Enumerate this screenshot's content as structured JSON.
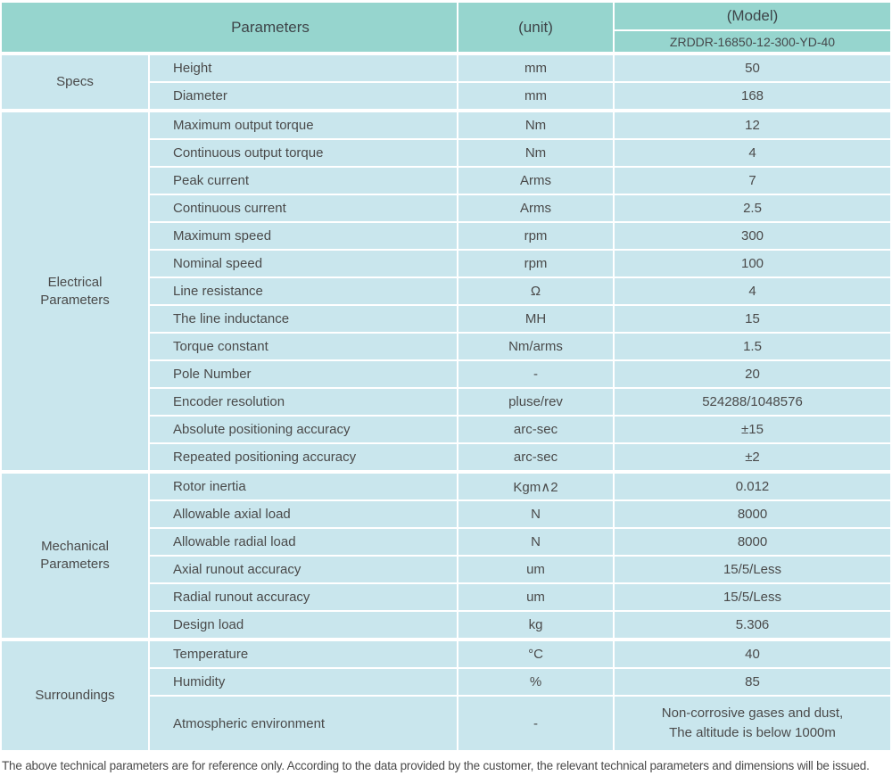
{
  "header": {
    "parameters_label": "Parameters",
    "unit_label": "(unit)",
    "model_label": "(Model)",
    "model_value": "ZRDDR-16850-12-300-YD-40"
  },
  "sections": [
    {
      "label": "Specs",
      "rows": [
        {
          "name": "Height",
          "unit": "mm",
          "value": "50"
        },
        {
          "name": "Diameter",
          "unit": "mm",
          "value": "168"
        }
      ]
    },
    {
      "label": "Electrical Parameters",
      "rows": [
        {
          "name": "Maximum output torque",
          "unit": "Nm",
          "value": "12"
        },
        {
          "name": "Continuous output torque",
          "unit": "Nm",
          "value": "4"
        },
        {
          "name": "Peak current",
          "unit": "Arms",
          "value": "7"
        },
        {
          "name": "Continuous current",
          "unit": "Arms",
          "value": "2.5"
        },
        {
          "name": "Maximum speed",
          "unit": "rpm",
          "value": "300"
        },
        {
          "name": "Nominal speed",
          "unit": "rpm",
          "value": "100"
        },
        {
          "name": "Line resistance",
          "unit": "Ω",
          "value": "4"
        },
        {
          "name": "The line inductance",
          "unit": "MH",
          "value": "15"
        },
        {
          "name": "Torque constant",
          "unit": "Nm/arms",
          "value": "1.5"
        },
        {
          "name": "Pole Number",
          "unit": "-",
          "value": "20"
        },
        {
          "name": "Encoder resolution",
          "unit": "pluse/rev",
          "value": "524288/1048576"
        },
        {
          "name": "Absolute positioning accuracy",
          "unit": "arc-sec",
          "value": "±15"
        },
        {
          "name": "Repeated positioning accuracy",
          "unit": "arc-sec",
          "value": "±2"
        }
      ]
    },
    {
      "label": "Mechanical Parameters",
      "rows": [
        {
          "name": "Rotor inertia",
          "unit": "Kgm∧2",
          "value": "0.012"
        },
        {
          "name": "Allowable axial load",
          "unit": "N",
          "value": "8000"
        },
        {
          "name": "Allowable radial load",
          "unit": "N",
          "value": "8000"
        },
        {
          "name": "Axial runout accuracy",
          "unit": "um",
          "value": "15/5/Less"
        },
        {
          "name": "Radial runout accuracy",
          "unit": "um",
          "value": "15/5/Less"
        },
        {
          "name": "Design load",
          "unit": "kg",
          "value": "5.306"
        }
      ]
    },
    {
      "label": "Surroundings",
      "rows": [
        {
          "name": "Temperature",
          "unit": "°C",
          "value": "40"
        },
        {
          "name": "Humidity",
          "unit": "%",
          "value": "85"
        },
        {
          "name": "Atmospheric environment",
          "unit": "-",
          "value": "Non-corrosive gases and dust,\nThe altitude is below 1000m",
          "tall": true
        }
      ]
    }
  ],
  "footer": {
    "note": "The above technical parameters are for reference only. According to the data provided by the customer, the relevant technical parameters and dimensions will be issued."
  },
  "colors": {
    "header_bg": "#96d5ce",
    "cell_bg": "#c9e6ed"
  }
}
